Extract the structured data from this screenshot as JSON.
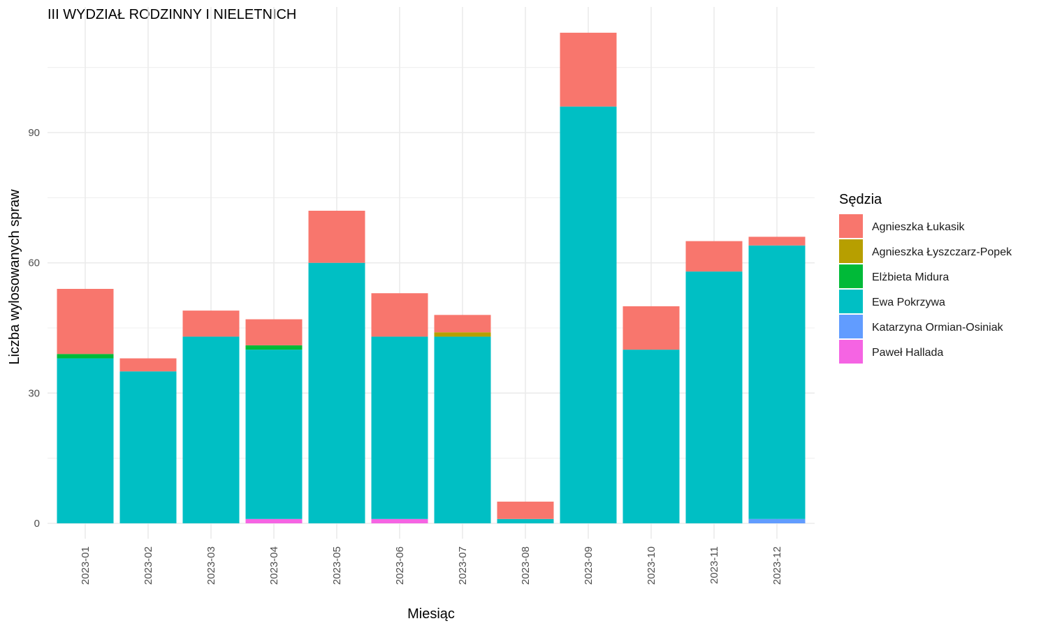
{
  "chart_data": {
    "type": "bar",
    "stacked": true,
    "title": "III WYDZIAŁ RODZINNY I NIELETNICH",
    "xlabel": "Miesiąc",
    "ylabel": "Liczba wylosowanych spraw",
    "ylim": [
      0,
      120
    ],
    "yticks": [
      0,
      30,
      60,
      90
    ],
    "grid": true,
    "legend_position": "right",
    "legend_title": "Sędzia",
    "categories": [
      "2023-01",
      "2023-02",
      "2023-03",
      "2023-04",
      "2023-05",
      "2023-06",
      "2023-07",
      "2023-08",
      "2023-09",
      "2023-10",
      "2023-11",
      "2023-12"
    ],
    "series": [
      {
        "name": "Agnieszka Łukasik",
        "color": "#F8766D",
        "values": [
          15,
          3,
          6,
          6,
          12,
          10,
          4,
          4,
          17,
          10,
          7,
          2
        ]
      },
      {
        "name": "Agnieszka Łyszczarz-Popek",
        "color": "#B79F00",
        "values": [
          0,
          0,
          0,
          0,
          0,
          0,
          1,
          0,
          0,
          0,
          0,
          0
        ]
      },
      {
        "name": "Elżbieta Midura",
        "color": "#00BA38",
        "values": [
          1,
          0,
          0,
          1,
          0,
          0,
          0,
          0,
          0,
          0,
          0,
          0
        ]
      },
      {
        "name": "Ewa Pokrzywa",
        "color": "#00BFC4",
        "values": [
          38,
          35,
          43,
          39,
          60,
          42,
          43,
          1,
          96,
          40,
          58,
          63
        ]
      },
      {
        "name": "Katarzyna Ormian-Osiniak",
        "color": "#619CFF",
        "values": [
          0,
          0,
          0,
          0,
          0,
          0,
          0,
          0,
          0,
          0,
          0,
          1
        ]
      },
      {
        "name": "Paweł Hallada",
        "color": "#F564E3",
        "values": [
          0,
          0,
          0,
          1,
          0,
          1,
          0,
          0,
          0,
          0,
          0,
          0
        ]
      }
    ]
  }
}
